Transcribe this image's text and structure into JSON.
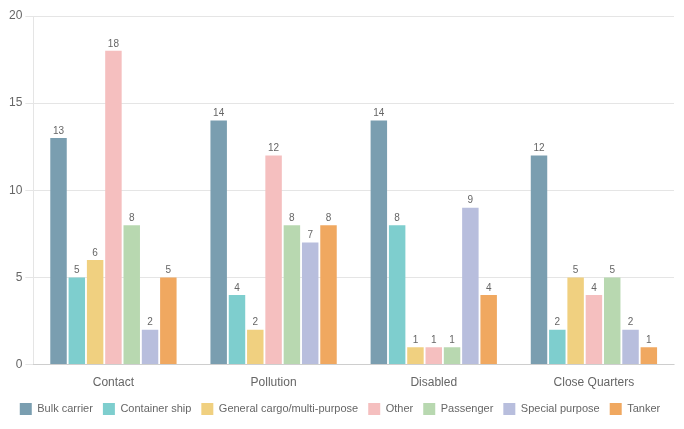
{
  "chart_data": {
    "type": "bar",
    "categories": [
      "Contact",
      "Pollution",
      "Disabled",
      "Close Quarters"
    ],
    "series": [
      {
        "name": "Bulk carrier",
        "color": "#7a9eb0",
        "values": [
          13,
          14,
          14,
          12
        ]
      },
      {
        "name": "Container ship",
        "color": "#7ecece",
        "values": [
          5,
          4,
          8,
          2
        ]
      },
      {
        "name": "General cargo/multi-purpose",
        "color": "#f0d080",
        "values": [
          6,
          2,
          1,
          5
        ]
      },
      {
        "name": "Other",
        "color": "#f5bfbf",
        "values": [
          18,
          12,
          1,
          4
        ]
      },
      {
        "name": "Passenger",
        "color": "#b8d8b0",
        "values": [
          8,
          8,
          1,
          5
        ]
      },
      {
        "name": "Special purpose",
        "color": "#b8bedd",
        "values": [
          2,
          7,
          9,
          2
        ]
      },
      {
        "name": "Tanker",
        "color": "#f0a860",
        "values": [
          5,
          8,
          4,
          1
        ]
      }
    ],
    "ylim": [
      0,
      20
    ],
    "yticks": [
      0,
      5,
      10,
      15,
      20
    ],
    "grid": true,
    "legend": "bottom",
    "data_labels": true
  }
}
